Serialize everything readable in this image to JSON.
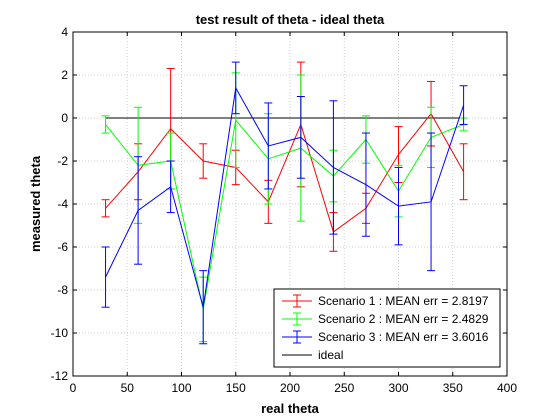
{
  "chart_data": {
    "type": "line",
    "title": "test result of theta - ideal theta",
    "xlabel": "real theta",
    "ylabel": "measured theta",
    "xlim": [
      0,
      400
    ],
    "ylim": [
      -12,
      4
    ],
    "xticks": [
      0,
      50,
      100,
      150,
      200,
      250,
      300,
      350,
      400
    ],
    "yticks": [
      -12,
      -10,
      -8,
      -6,
      -4,
      -2,
      0,
      2,
      4
    ],
    "grid": true,
    "legend_position": "bottom-right",
    "x": [
      30,
      60,
      90,
      120,
      150,
      180,
      210,
      240,
      270,
      300,
      330,
      360
    ],
    "series": [
      {
        "name": "Scenario 1 : MEAN err = 2.8197",
        "color": "#ff0000",
        "values": [
          -4.2,
          -2.5,
          -0.5,
          -2.0,
          -2.3,
          -3.9,
          -0.3,
          -5.3,
          -4.2,
          -1.7,
          0.2,
          -2.5
        ],
        "err": [
          0.4,
          1.3,
          2.8,
          0.8,
          0.8,
          1.0,
          2.9,
          0.9,
          0.7,
          1.3,
          1.5,
          1.3
        ]
      },
      {
        "name": "Scenario 2 : MEAN err = 2.4829",
        "color": "#00ff00",
        "values": [
          -0.3,
          -2.2,
          -2.0,
          -8.9,
          -0.1,
          -1.9,
          -1.4,
          -2.7,
          -1.0,
          -3.4,
          -0.9,
          -0.3
        ],
        "err": [
          0.4,
          2.7,
          1.3,
          1.5,
          2.2,
          2.1,
          3.4,
          1.2,
          1.1,
          1.2,
          1.4,
          0.3
        ]
      },
      {
        "name": "Scenario 3 : MEAN err = 3.6016",
        "color": "#0000ff",
        "values": [
          -7.4,
          -4.3,
          -3.2,
          -8.8,
          1.4,
          -1.3,
          -0.9,
          -2.3,
          -3.1,
          -4.1,
          -3.9,
          0.6
        ],
        "err": [
          1.4,
          2.5,
          1.2,
          1.7,
          1.2,
          2.0,
          1.9,
          3.1,
          2.4,
          1.8,
          3.2,
          0.9
        ]
      },
      {
        "name": "ideal",
        "color": "#000000",
        "x": [
          30,
          360
        ],
        "values": [
          0,
          0
        ]
      }
    ]
  }
}
